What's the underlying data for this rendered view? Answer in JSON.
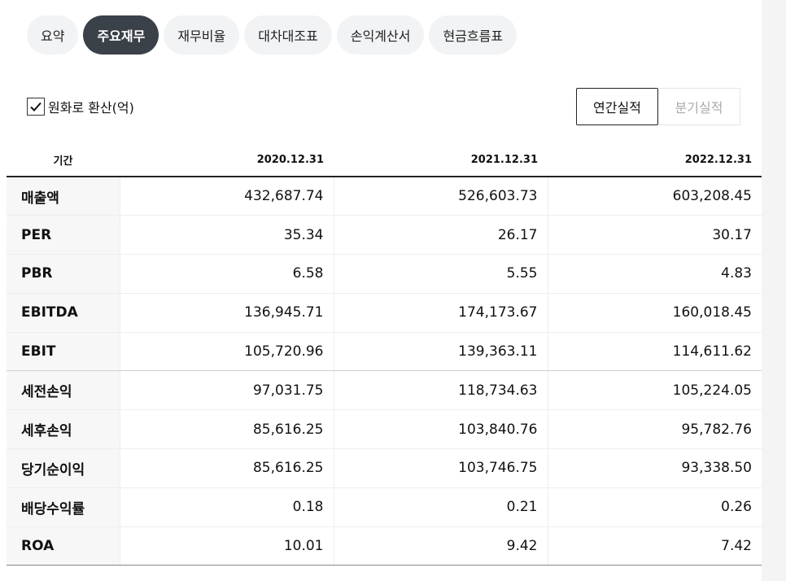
{
  "tabs": [
    {
      "label": "요약",
      "active": false
    },
    {
      "label": "주요재무",
      "active": true
    },
    {
      "label": "재무비율",
      "active": false
    },
    {
      "label": "대차대조표",
      "active": false
    },
    {
      "label": "손익계산서",
      "active": false
    },
    {
      "label": "현금흐름표",
      "active": false
    }
  ],
  "convert": {
    "label": "원화로 환산(억)",
    "checked": true
  },
  "period": {
    "annual": "연간실적",
    "quarterly": "분기실적",
    "selected": "annual"
  },
  "table": {
    "header": [
      "기간",
      "2020.12.31",
      "2021.12.31",
      "2022.12.31"
    ],
    "rows": [
      {
        "label": "매출액",
        "values": [
          "432,687.74",
          "526,603.73",
          "603,208.45"
        ]
      },
      {
        "label": "PER",
        "values": [
          "35.34",
          "26.17",
          "30.17"
        ]
      },
      {
        "label": "PBR",
        "values": [
          "6.58",
          "5.55",
          "4.83"
        ]
      },
      {
        "label": "EBITDA",
        "values": [
          "136,945.71",
          "174,173.67",
          "160,018.45"
        ]
      },
      {
        "label": "EBIT",
        "values": [
          "105,720.96",
          "139,363.11",
          "114,611.62"
        ]
      },
      {
        "label": "세전손익",
        "values": [
          "97,031.75",
          "118,734.63",
          "105,224.05"
        ]
      },
      {
        "label": "세후손익",
        "values": [
          "85,616.25",
          "103,840.76",
          "95,782.76"
        ]
      },
      {
        "label": "당기순이익",
        "values": [
          "85,616.25",
          "103,746.75",
          "93,338.50"
        ]
      },
      {
        "label": "배당수익률",
        "values": [
          "0.18",
          "0.21",
          "0.26"
        ]
      },
      {
        "label": "ROA",
        "values": [
          "10.01",
          "9.42",
          "7.42"
        ]
      }
    ]
  }
}
